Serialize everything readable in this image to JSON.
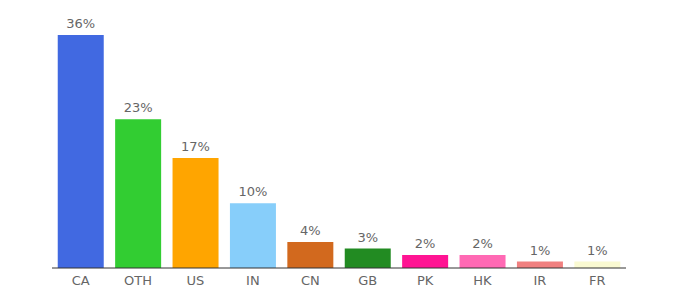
{
  "chart_data": {
    "type": "bar",
    "categories": [
      "CA",
      "OTH",
      "US",
      "IN",
      "CN",
      "GB",
      "PK",
      "HK",
      "IR",
      "FR"
    ],
    "values": [
      36,
      23,
      17,
      10,
      4,
      3,
      2,
      2,
      1,
      1
    ],
    "value_labels": [
      "36%",
      "23%",
      "17%",
      "10%",
      "4%",
      "3%",
      "2%",
      "2%",
      "1%",
      "1%"
    ],
    "colors": [
      "#4169e1",
      "#32cd32",
      "#ffa500",
      "#87cefa",
      "#d2691e",
      "#228b22",
      "#ff1493",
      "#ff69b4",
      "#f08080",
      "#fafad2"
    ],
    "data_labels": true,
    "tick_labels": "x",
    "grid": false
  }
}
